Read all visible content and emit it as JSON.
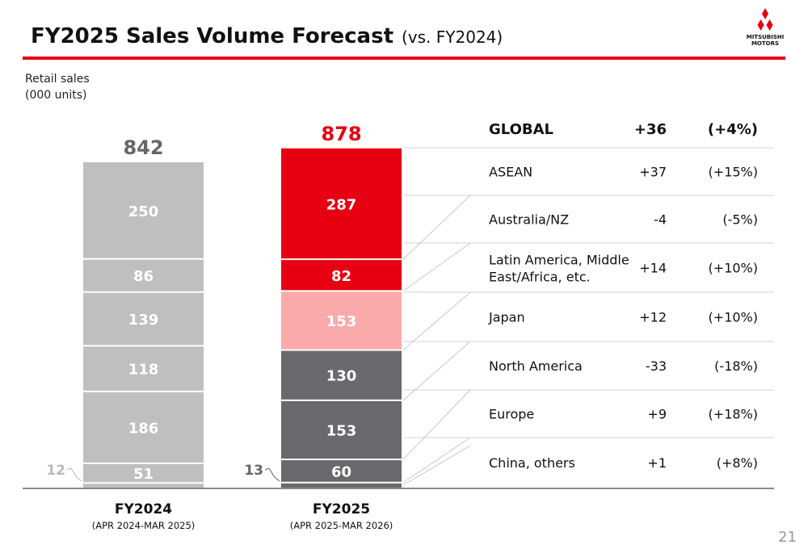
{
  "header": {
    "title": "FY2025 Sales Volume Forecast",
    "subtitle": "(vs. FY2024)",
    "accent_color": "#e60012"
  },
  "logo": {
    "name": "MITSUBISHI MOTORS",
    "line1": "MITSUBISHI",
    "line2": "MOTORS"
  },
  "units_label": {
    "line1": "Retail sales",
    "line2": "(000 units)"
  },
  "page_number": "21",
  "chart_data": {
    "type": "bar",
    "stacked": true,
    "ylabel": "Retail sales (000 units)",
    "categories": [
      {
        "label": "FY2024",
        "sublabel": "(APR 2024-MAR 2025)",
        "total": 842,
        "total_color": "#666666"
      },
      {
        "label": "FY2025",
        "sublabel": "(APR 2025-MAR 2026)",
        "total": 878,
        "total_color": "#e60012"
      }
    ],
    "series": [
      {
        "region": "China, others",
        "values": [
          12,
          13
        ],
        "colors": [
          "#bdbfc1",
          "#686a6d"
        ],
        "label_colors": [
          "#bbbbbb",
          "#666666"
        ]
      },
      {
        "region": "Europe",
        "values": [
          51,
          60
        ],
        "colors": [
          "#bdbfc1",
          "#686a6d"
        ]
      },
      {
        "region": "North America",
        "values": [
          186,
          153
        ],
        "colors": [
          "#bdbfc1",
          "#686a6d"
        ]
      },
      {
        "region": "Japan",
        "values": [
          118,
          130
        ],
        "colors": [
          "#bdbfc1",
          "#686a6d"
        ]
      },
      {
        "region": "Latin America, Middle East/Africa, etc.",
        "values": [
          139,
          153
        ],
        "colors": [
          "#bdbfc1",
          "#fbaaab"
        ]
      },
      {
        "region": "Australia/NZ",
        "values": [
          86,
          82
        ],
        "colors": [
          "#bdbfc1",
          "#e60012"
        ]
      },
      {
        "region": "ASEAN",
        "values": [
          250,
          287
        ],
        "colors": [
          "#bdbfc1",
          "#e60012"
        ]
      }
    ],
    "ylim": [
      0,
      842
    ],
    "table": {
      "header": {
        "region": "GLOBAL",
        "change": "+36",
        "pct": "(+4%)"
      },
      "rows": [
        {
          "region": "ASEAN",
          "change": "+37",
          "pct": "(+15%)"
        },
        {
          "region": "Australia/NZ",
          "change": "-4",
          "pct": "(-5%)"
        },
        {
          "region": "Latin America, Middle East/Africa, etc.",
          "region_lines": [
            "Latin America, Middle",
            "East/Africa, etc."
          ],
          "change": "+14",
          "pct": "(+10%)"
        },
        {
          "region": "Japan",
          "change": "+12",
          "pct": "(+10%)"
        },
        {
          "region": "North America",
          "change": "-33",
          "pct": "(-18%)"
        },
        {
          "region": "Europe",
          "change": "+9",
          "pct": "(+18%)"
        },
        {
          "region": "China, others",
          "change": "+1",
          "pct": "(+8%)"
        }
      ]
    }
  }
}
